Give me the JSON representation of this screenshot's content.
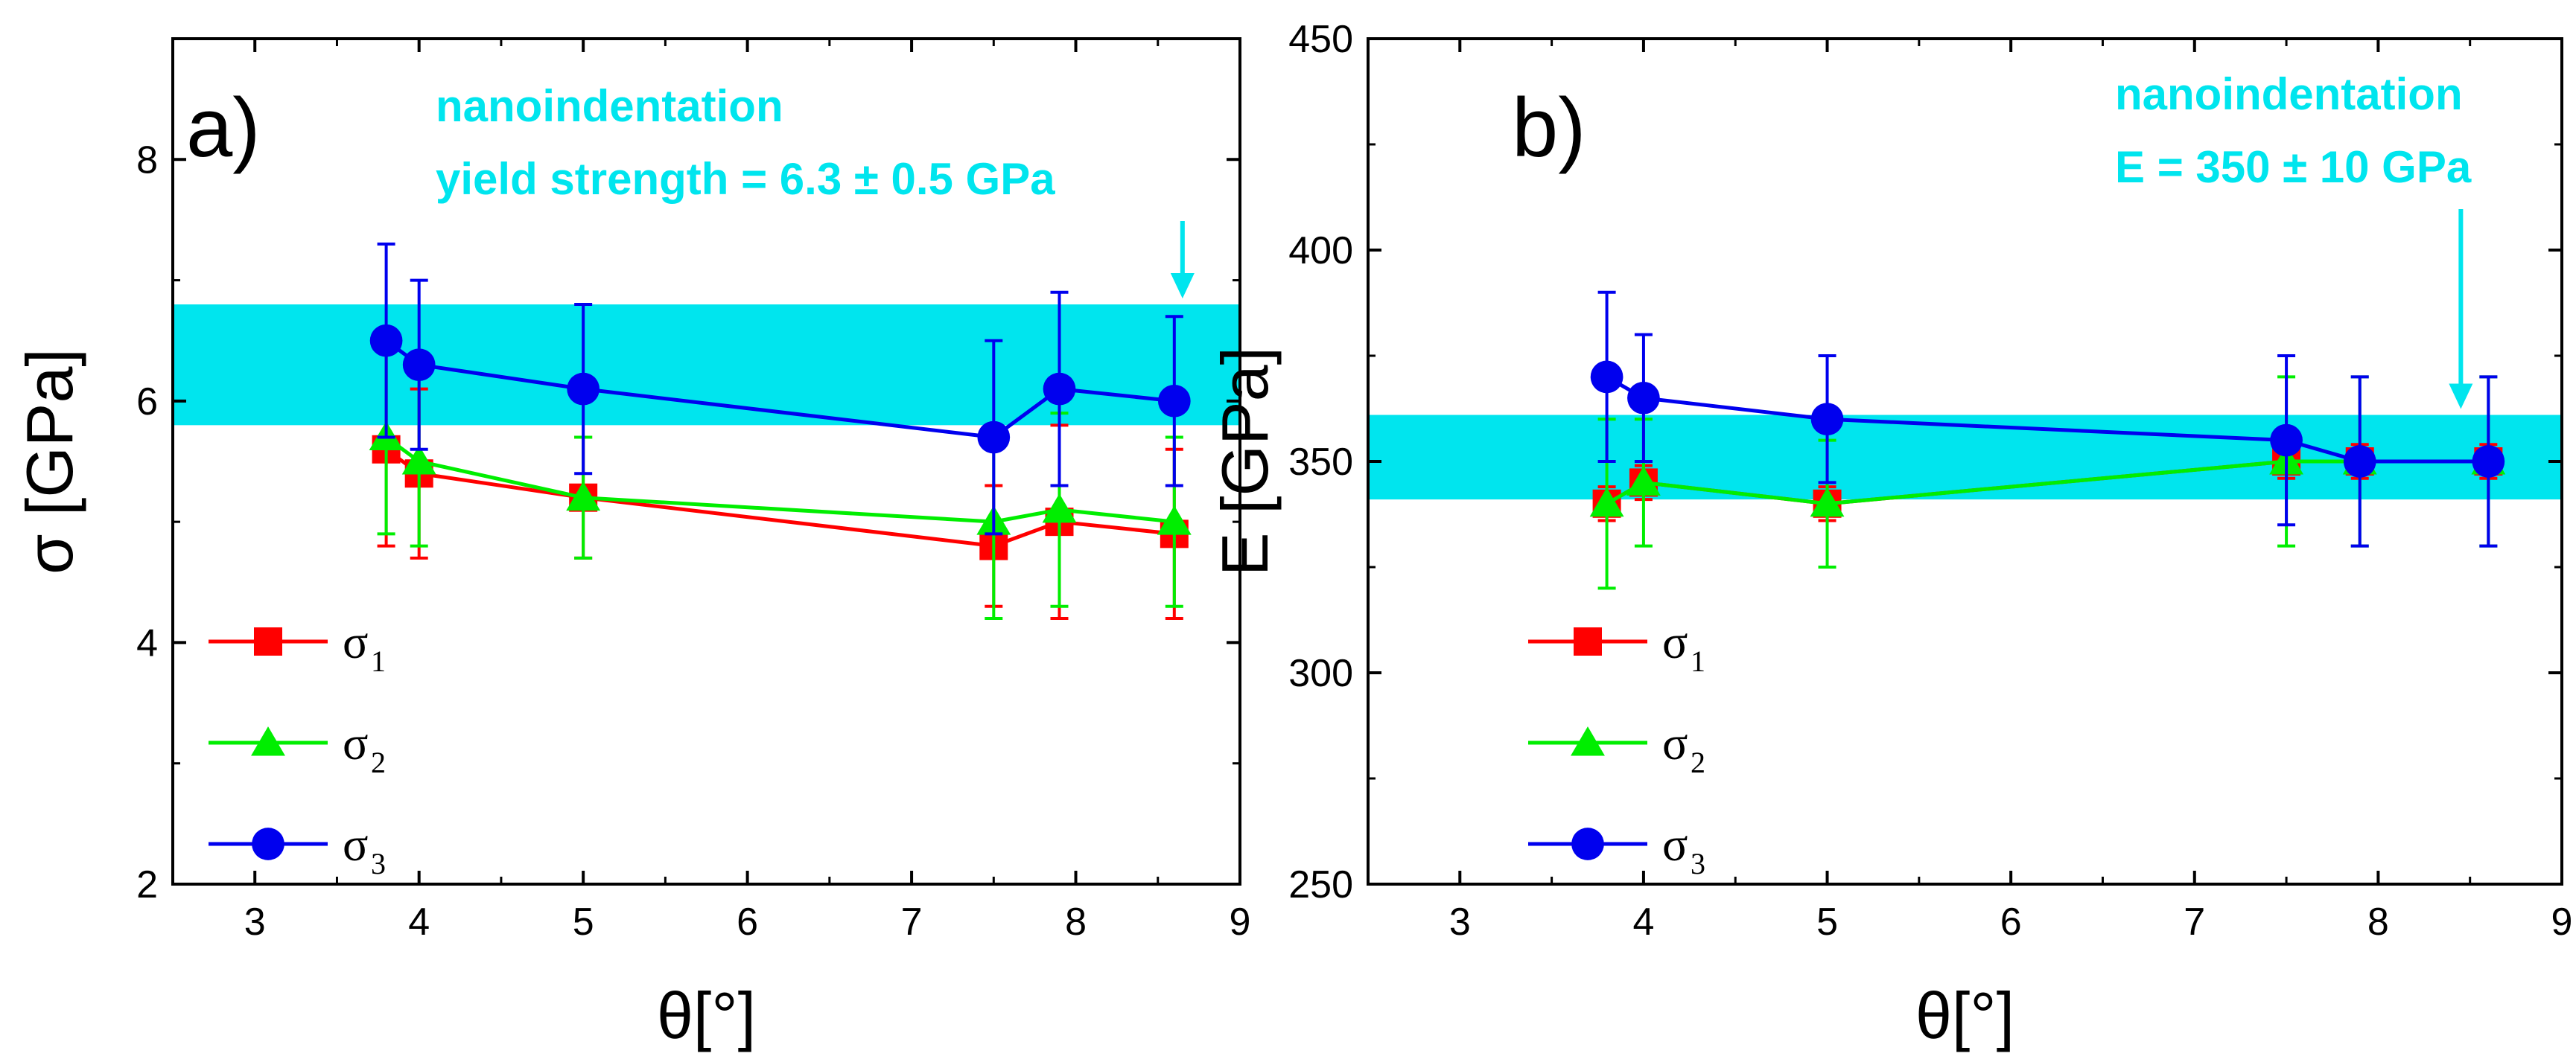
{
  "chart_data": [
    {
      "type": "line",
      "panel_label": "a)",
      "xlabel": "θ[°]",
      "ylabel": "σ [GPa]",
      "xlim": [
        2.5,
        9
      ],
      "ylim": [
        2,
        9
      ],
      "xticks": [
        3,
        4,
        5,
        6,
        7,
        8,
        9
      ],
      "yticks": [
        2,
        4,
        6,
        8
      ],
      "band": {
        "low": 5.8,
        "high": 6.8,
        "color": "#00E5EE"
      },
      "annotation": {
        "lines": [
          "nanoindentation",
          "yield strength = 6.3 ± 0.5 GPa"
        ],
        "arrow_x": 8.65,
        "color": "#00E5EE"
      },
      "series": [
        {
          "name": "σ1",
          "label": "σ",
          "sub": "1",
          "color": "#FF0000",
          "marker": "square",
          "x": [
            3.8,
            4.0,
            5.0,
            7.5,
            7.9,
            8.6
          ],
          "values": [
            5.6,
            5.4,
            5.2,
            4.8,
            5.0,
            4.9
          ],
          "err": [
            0.8,
            0.7,
            0.5,
            0.5,
            0.8,
            0.7
          ]
        },
        {
          "name": "σ2",
          "label": "σ",
          "sub": "2",
          "color": "#00EE00",
          "marker": "triangle",
          "x": [
            3.8,
            4.0,
            5.0,
            7.5,
            7.9,
            8.6
          ],
          "values": [
            5.7,
            5.5,
            5.2,
            5.0,
            5.1,
            5.0
          ],
          "err": [
            0.8,
            0.7,
            0.5,
            0.8,
            0.8,
            0.7
          ]
        },
        {
          "name": "σ3",
          "label": "σ",
          "sub": "3",
          "color": "#0000EE",
          "marker": "circle",
          "x": [
            3.8,
            4.0,
            5.0,
            7.5,
            7.9,
            8.6
          ],
          "values": [
            6.5,
            6.3,
            6.1,
            5.7,
            6.1,
            6.0
          ],
          "err": [
            0.8,
            0.7,
            0.7,
            0.8,
            0.8,
            0.7
          ]
        }
      ]
    },
    {
      "type": "line",
      "panel_label": "b)",
      "xlabel": "θ[°]",
      "ylabel": "E [GPa]",
      "xlim": [
        2.5,
        9
      ],
      "ylim": [
        250,
        450
      ],
      "xticks": [
        3,
        4,
        5,
        6,
        7,
        8,
        9
      ],
      "yticks": [
        250,
        300,
        350,
        400,
        450
      ],
      "band": {
        "low": 341,
        "high": 361,
        "color": "#00E5EE"
      },
      "annotation": {
        "lines": [
          "nanoindentation",
          "E = 350 ± 10 GPa"
        ],
        "arrow_x": 8.45,
        "color": "#00E5EE"
      },
      "series": [
        {
          "name": "σ1",
          "label": "σ",
          "sub": "1",
          "color": "#FF0000",
          "marker": "square",
          "x": [
            3.8,
            4.0,
            5.0,
            7.5,
            7.9,
            8.6
          ],
          "values": [
            340,
            345,
            340,
            350,
            350,
            350
          ],
          "err": [
            4,
            4,
            4,
            4,
            4,
            4
          ]
        },
        {
          "name": "σ2",
          "label": "σ",
          "sub": "2",
          "color": "#00EE00",
          "marker": "triangle",
          "x": [
            3.8,
            4.0,
            5.0,
            7.5,
            7.9,
            8.6
          ],
          "values": [
            340,
            345,
            340,
            350,
            350,
            350
          ],
          "err": [
            20,
            15,
            15,
            20,
            20,
            20
          ]
        },
        {
          "name": "σ3",
          "label": "σ",
          "sub": "3",
          "color": "#0000EE",
          "marker": "circle",
          "x": [
            3.8,
            4.0,
            5.0,
            7.5,
            7.9,
            8.6
          ],
          "values": [
            370,
            365,
            360,
            355,
            350,
            350
          ],
          "err": [
            20,
            15,
            15,
            20,
            20,
            20
          ]
        }
      ]
    }
  ]
}
